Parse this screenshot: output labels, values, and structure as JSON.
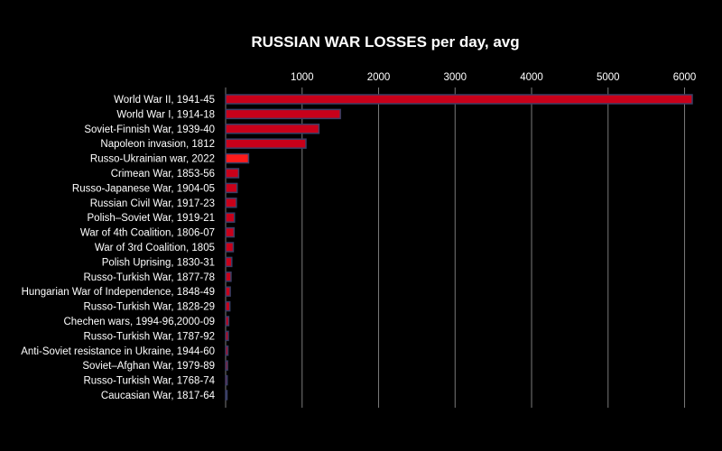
{
  "chart_data": {
    "type": "bar",
    "orientation": "horizontal",
    "title": "RUSSIAN WAR LOSSES per day, avg",
    "xlabel": "",
    "ylabel": "",
    "xlim": [
      0,
      6100
    ],
    "x_ticks": [
      1000,
      2000,
      3000,
      4000,
      5000,
      6000
    ],
    "grid": true,
    "categories": [
      "World War II, 1941-45",
      "World War I, 1914-18",
      "Soviet-Finnish War, 1939-40",
      "Napoleon invasion, 1812",
      "Russo-Ukrainian war, 2022",
      "Crimean War, 1853-56",
      "Russo-Japanese War, 1904-05",
      "Russian Civil War, 1917-23",
      "Polish–Soviet War, 1919-21",
      "War of 4th Coalition, 1806-07",
      "War of 3rd Coalition, 1805",
      "Polish Uprising, 1830-31",
      "Russo-Turkish War, 1877-78",
      "Hungarian War of Independence, 1848-49",
      "Russo-Turkish War, 1828-29",
      "Chechen wars, 1994-96,2000-09",
      "Russo-Turkish War, 1787-92",
      "Anti-Soviet resistance in Ukraine, 1944-60",
      "Soviet–Afghan War, 1979-89",
      "Russo-Turkish War, 1768-74",
      "Caucasian War, 1817-64"
    ],
    "values": [
      6100,
      1500,
      1220,
      1050,
      300,
      170,
      150,
      140,
      115,
      110,
      100,
      80,
      70,
      60,
      55,
      40,
      35,
      30,
      25,
      20,
      15
    ],
    "colors": {
      "background": "#000000",
      "bar": "#c8001a",
      "bar_highlight": "#ff1a1a",
      "bar_outline": "#3a3f66",
      "grid": "#7a7a7a",
      "text": "#ffffff"
    },
    "highlight_index": 4
  }
}
